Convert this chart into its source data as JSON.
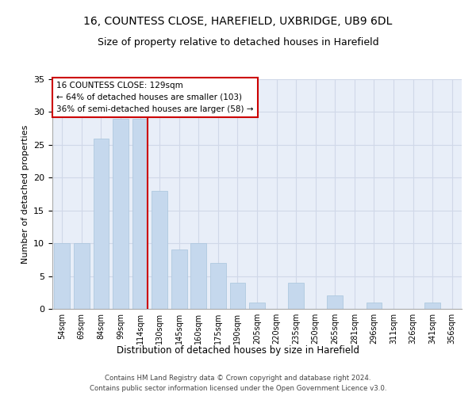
{
  "title1": "16, COUNTESS CLOSE, HAREFIELD, UXBRIDGE, UB9 6DL",
  "title2": "Size of property relative to detached houses in Harefield",
  "xlabel": "Distribution of detached houses by size in Harefield",
  "ylabel": "Number of detached properties",
  "categories": [
    "54sqm",
    "69sqm",
    "84sqm",
    "99sqm",
    "114sqm",
    "130sqm",
    "145sqm",
    "160sqm",
    "175sqm",
    "190sqm",
    "205sqm",
    "220sqm",
    "235sqm",
    "250sqm",
    "265sqm",
    "281sqm",
    "296sqm",
    "311sqm",
    "326sqm",
    "341sqm",
    "356sqm"
  ],
  "values": [
    10,
    10,
    26,
    29,
    29,
    18,
    9,
    10,
    7,
    4,
    1,
    0,
    4,
    0,
    2,
    0,
    1,
    0,
    0,
    1,
    0
  ],
  "bar_color": "#c5d8ed",
  "bar_edge_color": "#a8c4dc",
  "annotation_text1": "16 COUNTESS CLOSE: 129sqm",
  "annotation_text2": "← 64% of detached houses are smaller (103)",
  "annotation_text3": "36% of semi-detached houses are larger (58) →",
  "annotation_box_color": "#ffffff",
  "annotation_box_edge_color": "#cc0000",
  "ylim": [
    0,
    35
  ],
  "yticks": [
    0,
    5,
    10,
    15,
    20,
    25,
    30,
    35
  ],
  "footer1": "Contains HM Land Registry data © Crown copyright and database right 2024.",
  "footer2": "Contains public sector information licensed under the Open Government Licence v3.0.",
  "background_color": "#ffffff",
  "grid_color": "#d0d8e8",
  "title1_fontsize": 10,
  "title2_fontsize": 9,
  "axis_bg_color": "#e8eef8"
}
